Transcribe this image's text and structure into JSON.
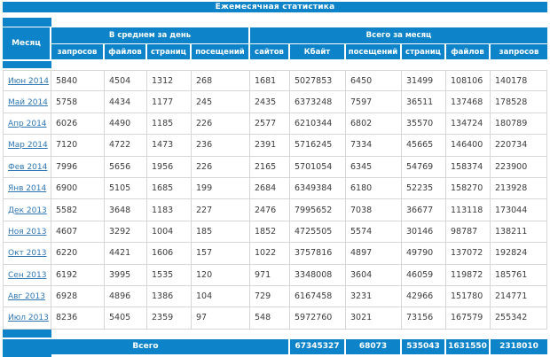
{
  "table": {
    "title": "Ежемесячная статистика",
    "month_header": "Месяц",
    "groups": [
      {
        "label": "В среднем за день",
        "columns": [
          "запросов",
          "файлов",
          "страниц",
          "посещений"
        ]
      },
      {
        "label": "Всего за месяц",
        "columns": [
          "сайтов",
          "Кбайт",
          "посещений",
          "страниц",
          "файлов",
          "запросов"
        ]
      }
    ],
    "rows": [
      {
        "month": "Июн 2014",
        "values": [
          5840,
          4504,
          1312,
          268,
          1681,
          5027853,
          6450,
          31499,
          108106,
          140178
        ]
      },
      {
        "month": "Май 2014",
        "values": [
          5758,
          4434,
          1177,
          245,
          2435,
          6373248,
          7597,
          36511,
          137468,
          178528
        ]
      },
      {
        "month": "Апр 2014",
        "values": [
          6026,
          4490,
          1185,
          226,
          2577,
          6210344,
          6802,
          35570,
          134724,
          180789
        ]
      },
      {
        "month": "Мар 2014",
        "values": [
          7120,
          4722,
          1473,
          236,
          2391,
          5716245,
          7334,
          45665,
          146400,
          220734
        ]
      },
      {
        "month": "Фев 2014",
        "values": [
          7996,
          5656,
          1956,
          226,
          2165,
          5701054,
          6345,
          54769,
          158374,
          223900
        ]
      },
      {
        "month": "Янв 2014",
        "values": [
          6900,
          5105,
          1685,
          199,
          2684,
          6349384,
          6180,
          52235,
          158270,
          213928
        ]
      },
      {
        "month": "Дек 2013",
        "values": [
          5582,
          3648,
          1183,
          227,
          2476,
          7995652,
          7038,
          36677,
          113118,
          173044
        ]
      },
      {
        "month": "Ноя 2013",
        "values": [
          4607,
          3292,
          1004,
          185,
          1852,
          4725505,
          5574,
          30146,
          98787,
          138211
        ]
      },
      {
        "month": "Окт 2013",
        "values": [
          6220,
          4421,
          1606,
          157,
          1022,
          3757816,
          4897,
          49790,
          137072,
          192824
        ]
      },
      {
        "month": "Сен 2013",
        "values": [
          6192,
          3995,
          1535,
          120,
          971,
          3348008,
          3604,
          46059,
          119872,
          185761
        ]
      },
      {
        "month": "Авг 2013",
        "values": [
          6928,
          4896,
          1386,
          104,
          729,
          6167458,
          3231,
          42966,
          151780,
          214771
        ]
      },
      {
        "month": "Июл 2013",
        "values": [
          8236,
          5405,
          2359,
          97,
          548,
          5972760,
          3021,
          73156,
          167579,
          255342
        ]
      }
    ],
    "total": {
      "label": "Всего",
      "values": [
        67345327,
        68073,
        535043,
        1631550,
        2318010
      ]
    }
  },
  "colors": {
    "header_blue": "#0d84c9",
    "link_blue": "#2e76b3",
    "grid_gray": "#d6d6d6",
    "data_text": "#3b3b3b",
    "background": "#ffffff"
  }
}
